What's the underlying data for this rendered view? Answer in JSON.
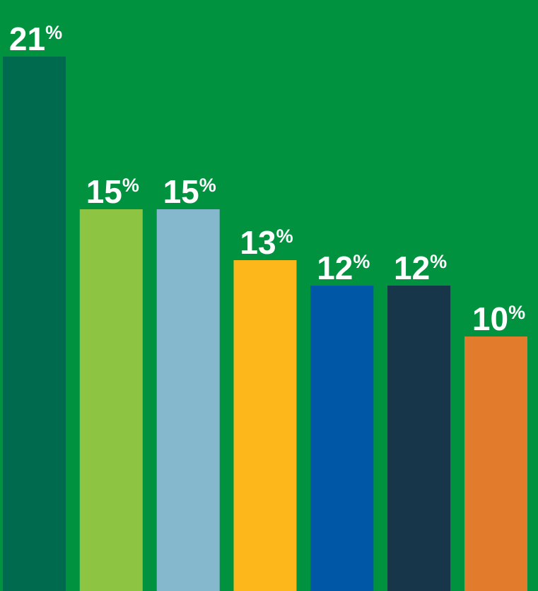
{
  "background_color": "#00923f",
  "chart_data": {
    "type": "bar",
    "values": [
      21,
      15,
      15,
      13,
      12,
      12,
      10
    ],
    "labels": [
      "21",
      "15",
      "15",
      "13",
      "12",
      "12",
      "10"
    ],
    "unit": "%",
    "colors": [
      "#006a4f",
      "#8dc442",
      "#86b8cd",
      "#fdb71a",
      "#0057a5",
      "#18364a",
      "#e27b2b"
    ],
    "ylim": [
      0,
      21
    ],
    "grid": false,
    "legend": "none"
  }
}
